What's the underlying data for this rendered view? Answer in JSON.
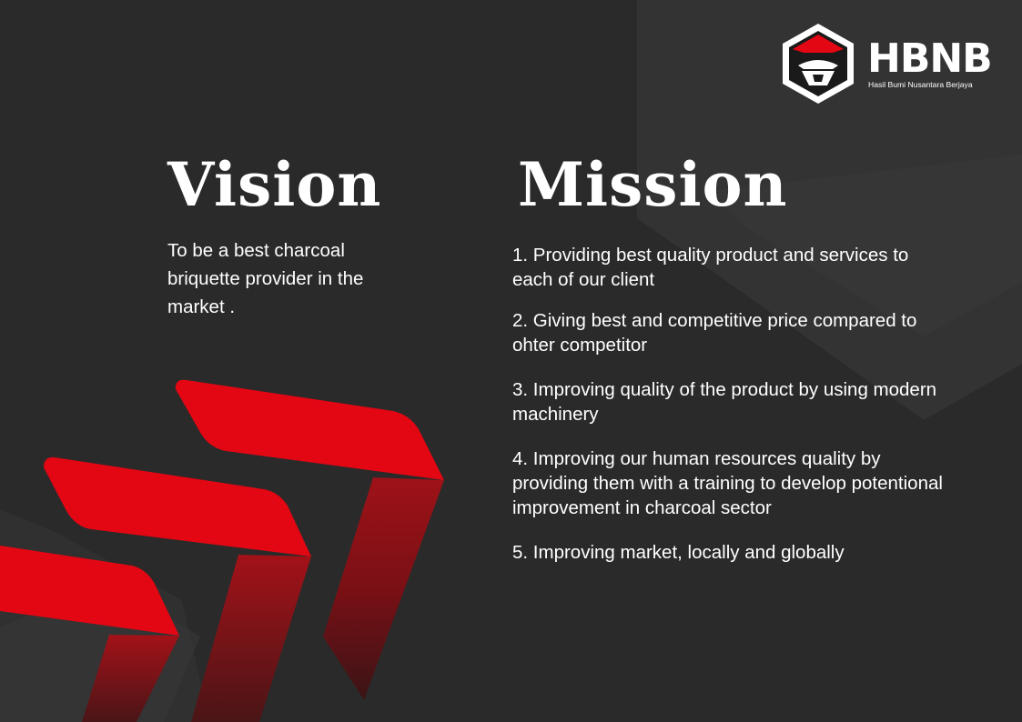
{
  "logo": {
    "name": "HBNB",
    "tagline": "Hasil Bumi Nusantara Berjaya"
  },
  "vision": {
    "title": "Vision",
    "text": "To be a best charcoal briquette provider in the market ."
  },
  "mission": {
    "title": "Mission",
    "items": [
      "1. Providing best quality product and services to each of our client",
      "2. Giving best and competitive price compared to ohter competitor",
      "3. Improving quality of the product by using modern machinery",
      "4. Improving our human resources quality by providing them with a training to develop potentional improvement in  charcoal sector",
      "5. Improving market, locally and globally"
    ]
  },
  "colors": {
    "background": "#2a2a2a",
    "accent_red": "#e30613",
    "text": "#ffffff"
  }
}
